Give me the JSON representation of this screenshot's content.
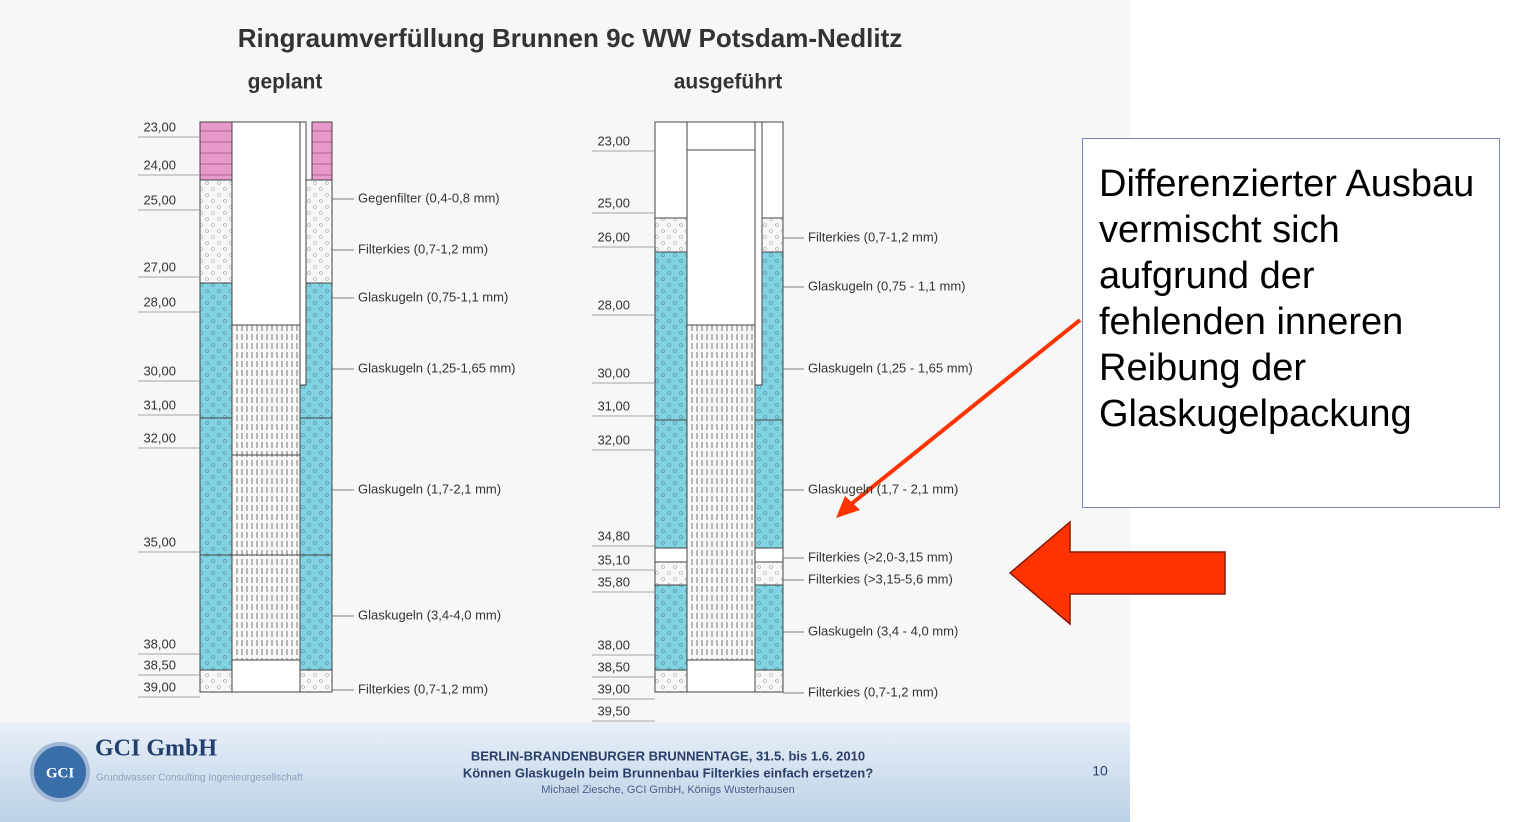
{
  "title": "Ringraumverfüllung Brunnen 9c WW Potsdam-Nedlitz",
  "columns": [
    {
      "heading": "geplant",
      "depths": [
        "23,00",
        "24,00",
        "25,00",
        "27,00",
        "28,00",
        "30,00",
        "31,00",
        "32,00",
        "35,00",
        "38,00",
        "38,50",
        "39,00"
      ],
      "layers": [
        "Gegenfilter (0,4-0,8 mm)",
        "Filterkies (0,7-1,2 mm)",
        "Glaskugeln (0,75-1,1 mm)",
        "Glaskugeln (1,25-1,65 mm)",
        "Glaskugeln (1,7-2,1 mm)",
        "Glaskugeln (3,4-4,0 mm)",
        "Filterkies (0,7-1,2 mm)"
      ]
    },
    {
      "heading": "ausgeführt",
      "depths": [
        "23,00",
        "25,00",
        "26,00",
        "28,00",
        "30,00",
        "31,00",
        "32,00",
        "34,80",
        "35,10",
        "35,80",
        "38,00",
        "38,50",
        "39,00",
        "39,50"
      ],
      "layers": [
        "Filterkies (0,7-1,2 mm)",
        "Glaskugeln (0,75 - 1,1 mm)",
        "Glaskugeln (1,25 - 1,65 mm)",
        "Glaskugeln (1,7 - 2,1 mm)",
        "Filterkies (>2,0-3,15 mm)",
        "Filterkies (>3,15-5,6 mm)",
        "Glaskugeln (3,4 - 4,0 mm)",
        "Filterkies (0,7-1,2 mm)"
      ]
    }
  ],
  "callout": "Differenzierter Ausbau vermischt sich aufgrund der fehlenden inneren Reibung der Glaskugelpackung",
  "footer": {
    "company": "GCI GmbH",
    "logo": "GCI",
    "company_subtitle": "Grundwasser Consulting Ingenieurgesellschaft",
    "event": "BERLIN-BRANDENBURGER BRUNNENTAGE, 31.5. bis 1.6. 2010",
    "talk_title": "Können Glaskugeln beim Brunnenbau Filterkies einfach ersetzen?",
    "author": "Michael Ziesche, GCI GmbH, Königs Wusterhausen",
    "page": "10"
  }
}
